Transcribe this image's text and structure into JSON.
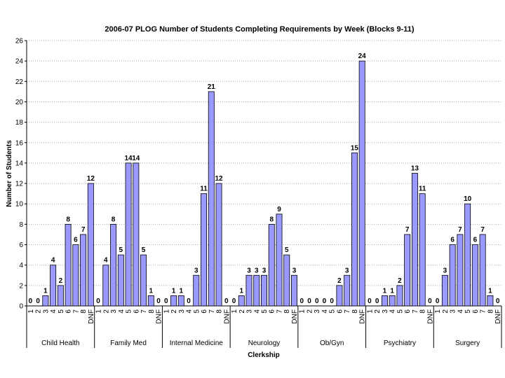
{
  "chart_data": {
    "type": "grouped-bar",
    "title": "2006-07 PLOG Number of Students Completing Requirements by Week (Blocks 9-11)",
    "ylabel": "Number of Students",
    "xlabel": "Clerkship",
    "color": "#9999ff",
    "grid": true,
    "ylim": [
      0,
      26
    ],
    "yticks": [
      0,
      2,
      4,
      6,
      8,
      10,
      12,
      14,
      16,
      18,
      20,
      22,
      24,
      26
    ],
    "categories": [
      "1",
      "2",
      "3",
      "4",
      "5",
      "6",
      "7",
      "8",
      "DNF"
    ],
    "groups": [
      {
        "name": "Child Health",
        "values": [
          0,
          0,
          1,
          4,
          2,
          8,
          6,
          7,
          12
        ]
      },
      {
        "name": "Family Med",
        "values": [
          0,
          4,
          8,
          5,
          14,
          14,
          5,
          1,
          0
        ]
      },
      {
        "name": "Internal Medicine",
        "values": [
          0,
          1,
          1,
          0,
          3,
          11,
          21,
          12,
          0
        ]
      },
      {
        "name": "Neurology",
        "values": [
          0,
          1,
          3,
          3,
          3,
          8,
          9,
          5,
          3
        ]
      },
      {
        "name": "Ob/Gyn",
        "values": [
          0,
          0,
          0,
          0,
          0,
          2,
          3,
          15,
          24
        ]
      },
      {
        "name": "Psychiatry",
        "values": [
          0,
          0,
          1,
          1,
          2,
          7,
          13,
          11,
          0
        ]
      },
      {
        "name": "Surgery",
        "values": [
          0,
          3,
          6,
          7,
          10,
          6,
          7,
          1,
          0
        ]
      }
    ]
  }
}
